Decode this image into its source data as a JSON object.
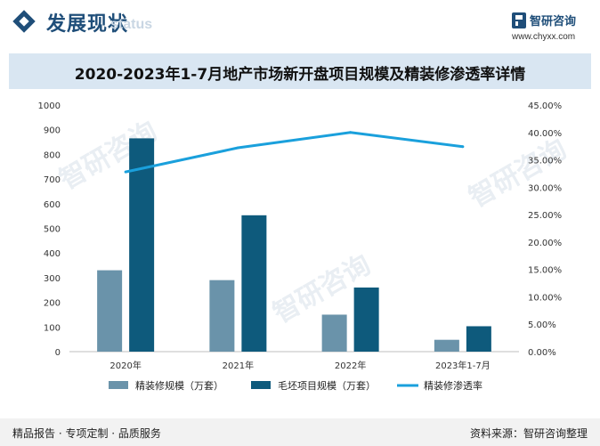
{
  "header": {
    "title": "发展现状",
    "subtitle": "status",
    "brand_name": "智研咨询",
    "brand_url": "www.chyxx.com"
  },
  "watermark": "智研咨询",
  "colors": {
    "primary": "#1f4e79",
    "series_1": "#6a93aa",
    "series_2": "#0e5a7c",
    "line": "#1aa0dc"
  },
  "chart_data": {
    "type": "bar",
    "title": "2020-2023年1-7月地产市场新开盘项目规模及精装修渗透率详情",
    "categories": [
      "2020年",
      "2021年",
      "2022年",
      "2023年1-7月"
    ],
    "series": [
      {
        "name": "精装修规模（万套）",
        "type": "bar",
        "axis": "left",
        "values": [
          330,
          290,
          150,
          48
        ]
      },
      {
        "name": "毛坯项目规模（万套）",
        "type": "bar",
        "axis": "left",
        "values": [
          865,
          553,
          260,
          103
        ]
      },
      {
        "name": "精装修渗透率",
        "type": "line",
        "axis": "right",
        "values": [
          0.328,
          0.372,
          0.4,
          0.374
        ]
      }
    ],
    "ylim": [
      0,
      1000
    ],
    "yticks": [
      "0",
      "100",
      "200",
      "300",
      "400",
      "500",
      "600",
      "700",
      "800",
      "900",
      "1000"
    ],
    "y2lim": [
      0,
      0.45
    ],
    "y2ticks": [
      "0.00%",
      "5.00%",
      "10.00%",
      "15.00%",
      "20.00%",
      "25.00%",
      "30.00%",
      "35.00%",
      "40.00%",
      "45.00%"
    ],
    "legend_position": "bottom",
    "grid": false
  },
  "footer": {
    "left": "精品报告 · 专项定制 · 品质服务",
    "source": "资料来源：智研咨询整理"
  }
}
